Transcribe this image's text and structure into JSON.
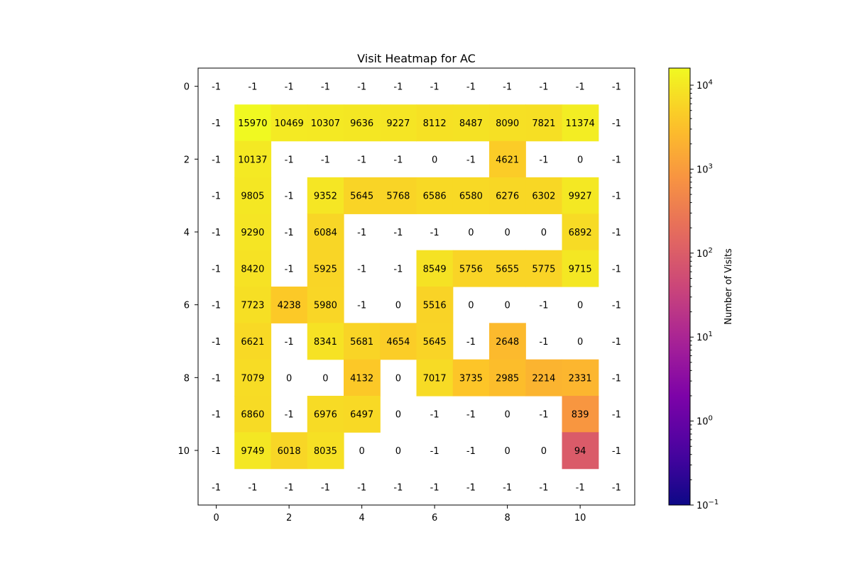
{
  "chart_data": {
    "type": "heatmap",
    "title": "Visit Heatmap for AC",
    "xlabel": "",
    "ylabel": "",
    "x_ticks": [
      0,
      2,
      4,
      6,
      8,
      10
    ],
    "y_ticks": [
      0,
      2,
      4,
      6,
      8,
      10
    ],
    "grid": false,
    "colormap": "plasma",
    "color_scale": "log",
    "colorbar": {
      "label": "Number of Visits",
      "min": 0.1,
      "max": 15970,
      "ticks": [
        {
          "base": "10",
          "exp": "4",
          "value": 10000
        },
        {
          "base": "10",
          "exp": "3",
          "value": 1000
        },
        {
          "base": "10",
          "exp": "2",
          "value": 100
        },
        {
          "base": "10",
          "exp": "1",
          "value": 10
        },
        {
          "base": "10",
          "exp": "0",
          "value": 1
        },
        {
          "base": "10",
          "exp": "−1",
          "value": 0.1
        }
      ]
    },
    "values": [
      [
        -1,
        -1,
        -1,
        -1,
        -1,
        -1,
        -1,
        -1,
        -1,
        -1,
        -1,
        -1
      ],
      [
        -1,
        15970,
        10469,
        10307,
        9636,
        9227,
        8112,
        8487,
        8090,
        7821,
        11374,
        -1
      ],
      [
        -1,
        10137,
        -1,
        -1,
        -1,
        -1,
        0,
        -1,
        4621,
        -1,
        0,
        -1
      ],
      [
        -1,
        9805,
        -1,
        9352,
        5645,
        5768,
        6586,
        6580,
        6276,
        6302,
        9927,
        -1
      ],
      [
        -1,
        9290,
        -1,
        6084,
        -1,
        -1,
        -1,
        0,
        0,
        0,
        6892,
        -1
      ],
      [
        -1,
        8420,
        -1,
        5925,
        -1,
        -1,
        8549,
        5756,
        5655,
        5775,
        9715,
        -1
      ],
      [
        -1,
        7723,
        4238,
        5980,
        -1,
        0,
        5516,
        0,
        0,
        -1,
        0,
        -1
      ],
      [
        -1,
        6621,
        -1,
        8341,
        5681,
        4654,
        5645,
        -1,
        2648,
        -1,
        0,
        -1
      ],
      [
        -1,
        7079,
        0,
        0,
        4132,
        0,
        7017,
        3735,
        2985,
        2214,
        2331,
        -1
      ],
      [
        -1,
        6860,
        -1,
        6976,
        6497,
        0,
        -1,
        -1,
        0,
        -1,
        839,
        -1
      ],
      [
        -1,
        9749,
        6018,
        8035,
        0,
        0,
        -1,
        -1,
        0,
        0,
        94,
        -1
      ],
      [
        -1,
        -1,
        -1,
        -1,
        -1,
        -1,
        -1,
        -1,
        -1,
        -1,
        -1,
        -1
      ]
    ]
  }
}
